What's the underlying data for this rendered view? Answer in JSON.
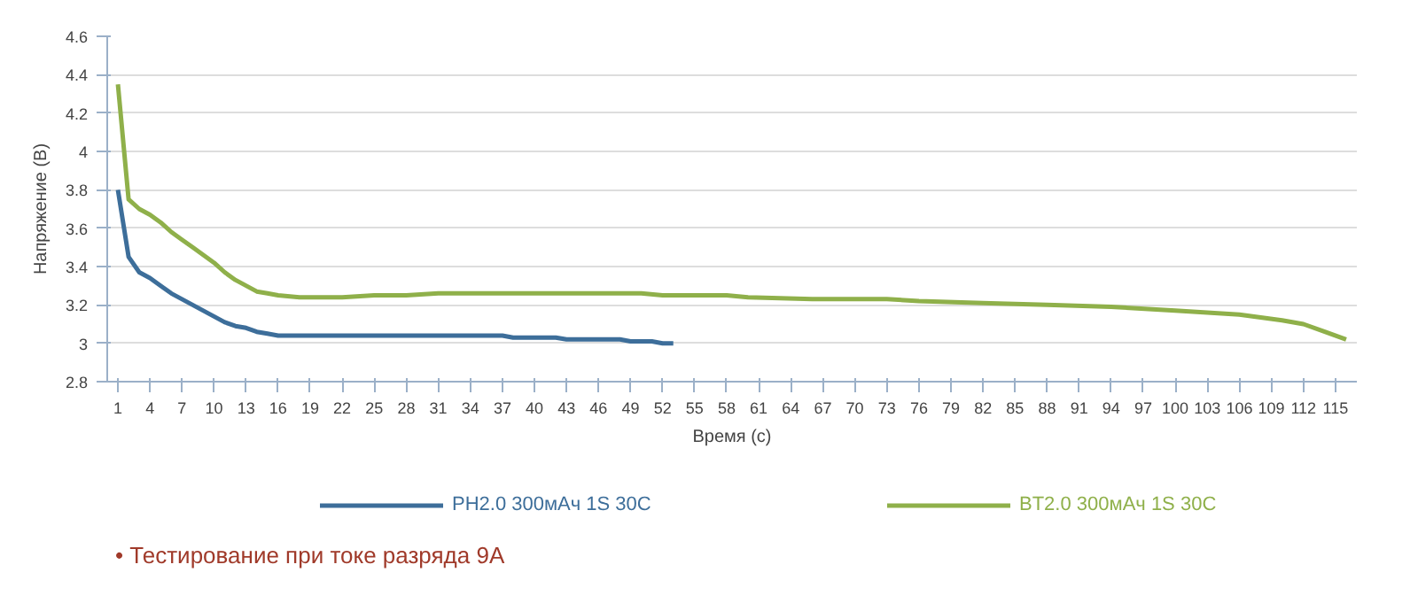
{
  "chart_data": {
    "type": "line",
    "xlabel": "Время (с)",
    "ylabel": "Напряжение (В)",
    "xlim": [
      0,
      117
    ],
    "xticks": [
      1,
      4,
      7,
      10,
      13,
      16,
      19,
      22,
      25,
      28,
      31,
      34,
      37,
      40,
      43,
      46,
      49,
      52,
      55,
      58,
      61,
      64,
      67,
      70,
      73,
      76,
      79,
      82,
      85,
      88,
      91,
      94,
      97,
      100,
      103,
      106,
      109,
      112,
      115
    ],
    "ylim": [
      2.8,
      4.6
    ],
    "yticks": [
      2.8,
      3,
      3.2,
      3.4,
      3.6,
      3.8,
      4,
      4.2,
      4.4,
      4.6
    ],
    "grid": "y",
    "legend": "bottom",
    "annotations": [
      "• Тестирование при токе разряда 9А"
    ],
    "series": [
      {
        "name": "PH2.0 300мАч 1S 30С",
        "color": "#3d6e9a",
        "x": [
          1,
          2,
          3,
          4,
          5,
          6,
          7,
          8,
          9,
          10,
          11,
          12,
          13,
          14,
          15,
          16,
          36,
          37,
          38,
          42,
          43,
          46,
          48,
          49,
          51,
          52,
          53
        ],
        "values": [
          3.8,
          3.45,
          3.37,
          3.34,
          3.3,
          3.26,
          3.23,
          3.2,
          3.17,
          3.14,
          3.11,
          3.09,
          3.08,
          3.06,
          3.05,
          3.04,
          3.04,
          3.04,
          3.03,
          3.03,
          3.02,
          3.02,
          3.02,
          3.01,
          3.01,
          3.0,
          3.0
        ]
      },
      {
        "name": "BT2.0 300мАч 1S 30С",
        "color": "#8fb04a",
        "x": [
          1,
          2,
          3,
          4,
          5,
          6,
          7,
          8,
          9,
          10,
          11,
          12,
          13,
          14,
          15,
          16,
          18,
          22,
          25,
          28,
          31,
          50,
          52,
          58,
          60,
          66,
          73,
          76,
          82,
          88,
          94,
          100,
          106,
          110,
          112,
          114,
          116
        ],
        "values": [
          4.35,
          3.75,
          3.7,
          3.67,
          3.63,
          3.58,
          3.54,
          3.5,
          3.46,
          3.42,
          3.37,
          3.33,
          3.3,
          3.27,
          3.26,
          3.25,
          3.24,
          3.24,
          3.25,
          3.25,
          3.26,
          3.26,
          3.25,
          3.25,
          3.24,
          3.23,
          3.23,
          3.22,
          3.21,
          3.2,
          3.19,
          3.17,
          3.15,
          3.12,
          3.1,
          3.06,
          3.02
        ]
      }
    ]
  }
}
